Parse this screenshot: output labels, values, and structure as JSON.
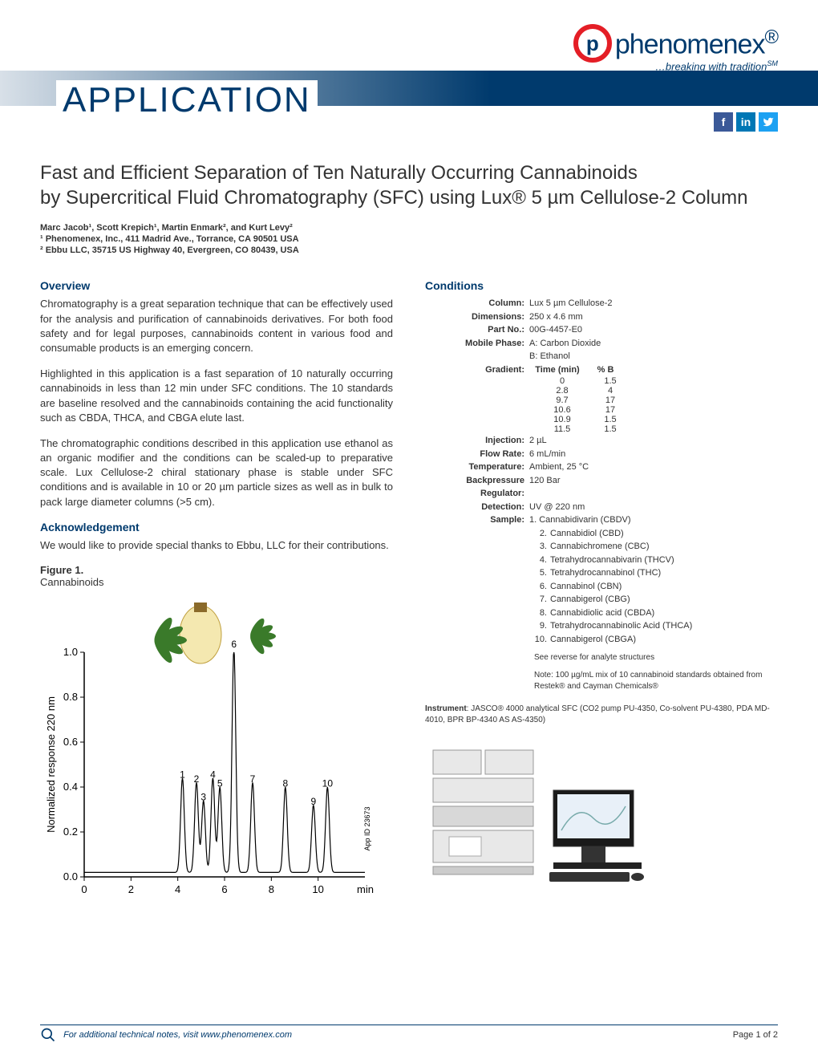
{
  "brand": {
    "name": "phenomenex",
    "tagline": "…breaking with tradition",
    "sm": "SM",
    "reg": "®",
    "logo_letter": "p",
    "colors": {
      "primary": "#003a6d",
      "accent": "#e41e26"
    }
  },
  "header": {
    "app_label": "APPLICATION"
  },
  "social": {
    "fb": "f",
    "li": "in",
    "tw": "t"
  },
  "title": {
    "line1": "Fast and Efficient Separation of Ten Naturally Occurring Cannabinoids",
    "line2": "by Supercritical Fluid Chromatography (SFC) using Lux® 5 µm Cellulose-2 Column"
  },
  "authors": "Marc Jacob¹, Scott Krepich¹, Martin Enmark², and Kurt Levy²",
  "affil1": "¹ Phenomenex, Inc., 411 Madrid Ave., Torrance, CA 90501 USA",
  "affil2": "² Ebbu LLC, 35715 US Highway 40, Evergreen, CO 80439, USA",
  "overview": {
    "head": "Overview",
    "p1": "Chromatography is a great separation technique that can be effectively used for the analysis and purification of cannabinoids derivatives. For both food safety and for legal purposes, cannabinoids content in various food and consumable products is an emerging concern.",
    "p2": "Highlighted in this application is a fast separation of 10 naturally occurring cannabinoids in less than 12 min under SFC conditions. The 10 standards are baseline resolved and the cannabinoids containing the acid functionality such as CBDA, THCA, and CBGA elute last.",
    "p3": "The chromatographic conditions described in this application use ethanol as an organic modifier and the conditions can be scaled-up to preparative scale. Lux Cellulose-2 chiral stationary phase is stable under SFC conditions and is available in 10 or 20 µm particle sizes as well as in bulk to pack large diameter columns (>5 cm)."
  },
  "ack": {
    "head": "Acknowledgement",
    "text": "We would like to provide special thanks to Ebbu, LLC for their contributions."
  },
  "figure": {
    "label": "Figure 1.",
    "caption": "Cannabinoids",
    "app_id": "App ID 23673"
  },
  "chart": {
    "type": "chromatogram",
    "x_label": "min",
    "y_label": "Normalized response 220 nm",
    "xlim": [
      0,
      12
    ],
    "ylim": [
      0.0,
      1.0
    ],
    "xticks": [
      0,
      2,
      4,
      6,
      8,
      10
    ],
    "yticks": [
      0.0,
      0.2,
      0.4,
      0.6,
      0.8,
      1.0
    ],
    "x_label_last": "min",
    "line_color": "#000000",
    "line_width": 1.2,
    "background": "#ffffff",
    "tick_fontsize": 13,
    "axis_label_fontsize": 13,
    "peak_label_fontsize": 12,
    "peaks": [
      {
        "n": 1,
        "rt": 4.2,
        "h": 0.42
      },
      {
        "n": 2,
        "rt": 4.8,
        "h": 0.4
      },
      {
        "n": 3,
        "rt": 5.1,
        "h": 0.32
      },
      {
        "n": 4,
        "rt": 5.5,
        "h": 0.42
      },
      {
        "n": 5,
        "rt": 5.8,
        "h": 0.38
      },
      {
        "n": 6,
        "rt": 6.4,
        "h": 1.0
      },
      {
        "n": 7,
        "rt": 7.2,
        "h": 0.4
      },
      {
        "n": 8,
        "rt": 8.6,
        "h": 0.38
      },
      {
        "n": 9,
        "rt": 9.8,
        "h": 0.3
      },
      {
        "n": 10,
        "rt": 10.4,
        "h": 0.38
      }
    ]
  },
  "conditions": {
    "head": "Conditions",
    "rows": [
      {
        "label": "Column:",
        "val": "Lux 5 µm Cellulose-2"
      },
      {
        "label": "Dimensions:",
        "val": "250 x 4.6 mm"
      },
      {
        "label": "Part No.:",
        "val": "00G-4457-E0"
      },
      {
        "label": "Mobile Phase:",
        "val": "A: Carbon Dioxide"
      },
      {
        "label": "",
        "val": "B: Ethanol"
      }
    ],
    "gradient_label": "Gradient:",
    "gradient_head": {
      "c1": "Time (min)",
      "c2": "% B"
    },
    "gradient": [
      {
        "t": "0",
        "b": "1.5"
      },
      {
        "t": "2.8",
        "b": "4"
      },
      {
        "t": "9.7",
        "b": "17"
      },
      {
        "t": "10.6",
        "b": "17"
      },
      {
        "t": "10.9",
        "b": "1.5"
      },
      {
        "t": "11.5",
        "b": "1.5"
      }
    ],
    "rows2": [
      {
        "label": "Injection:",
        "val": "2 µL"
      },
      {
        "label": "Flow Rate:",
        "val": "6 mL/min"
      },
      {
        "label": "Temperature:",
        "val": "Ambient, 25 °C"
      },
      {
        "label": "Backpressure Regulator:",
        "val": "120 Bar"
      },
      {
        "label": "Detection:",
        "val": "UV @ 220 nm"
      }
    ],
    "sample_label": "Sample:",
    "samples": [
      "Cannabidivarin (CBDV)",
      "Cannabidiol (CBD)",
      "Cannabichromene (CBC)",
      "Tetrahydrocannabivarin (THCV)",
      "Tetrahydrocannabinol (THC)",
      "Cannabinol (CBN)",
      "Cannabigerol (CBG)",
      "Cannabidiolic acid (CBDA)",
      "Tetrahydrocannabinolic Acid (THCA)",
      "Cannabigerol (CBGA)"
    ],
    "see_reverse": "See reverse for analyte structures",
    "note": "Note: 100 µg/mL mix of 10 cannabinoid standards obtained from Restek® and Cayman Chemicals®",
    "instrument_label": "Instrument",
    "instrument": ": JASCO® 4000 analytical SFC (CO2 pump PU-4350, Co-solvent PU-4380, PDA MD-4010, BPR BP-4340 AS AS-4350)"
  },
  "footer": {
    "text": "For additional technical notes, visit www.phenomenex.com",
    "page": "Page 1 of 2"
  }
}
